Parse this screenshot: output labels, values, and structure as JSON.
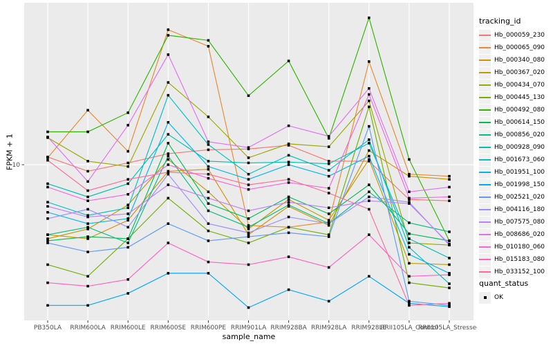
{
  "style": {
    "panel_background": "#EBEBEB",
    "grid_color": "#FFFFFF",
    "tick_color": "#333333",
    "tick_label_color": "#4D4D4D",
    "marker_color": "#000000"
  },
  "legend": {
    "tracking_title": "tracking_id",
    "quant_title": "quant_status",
    "quant_items": [
      {
        "label": "OK",
        "marker": "black-square"
      }
    ]
  },
  "chart_data": {
    "type": "line",
    "title": "",
    "xlabel": "sample_name",
    "ylabel": "FPKM + 1",
    "y_scale": "log10",
    "ylim": [
      1.8,
      60
    ],
    "y_tick_labels": [
      "10"
    ],
    "y_tick_values": [
      10
    ],
    "grid": "major",
    "legend_position": "right",
    "marker": "black-square",
    "categories": [
      "PB350LA",
      "RRIM600LA",
      "RRIM600LE",
      "RRIM600SE",
      "RRIM600PE",
      "RRIM901LA",
      "RRIM928BA",
      "RRIM928LA",
      "RRIM928LE",
      "RRII105LA_Control",
      "RRII105LA_Stressed"
    ],
    "series": [
      {
        "name": "Hb_000059_230",
        "color": "#F8766D",
        "values": [
          10.9,
          9.3,
          10.2,
          11.3,
          11.8,
          11.9,
          12.4,
          10.4,
          10.4,
          6.8,
          6.7
        ]
      },
      {
        "name": "Hb_000065_090",
        "color": "#E98A2C",
        "values": [
          10.8,
          18.3,
          11.6,
          44.7,
          37.2,
          5.1,
          5.0,
          5.3,
          31.4,
          9.0,
          8.8
        ]
      },
      {
        "name": "Hb_000340_080",
        "color": "#D39200",
        "values": [
          4.6,
          4.4,
          5.4,
          9.3,
          9.5,
          4.6,
          6.3,
          5.1,
          11.7,
          8.8,
          8.5
        ]
      },
      {
        "name": "Hb_000367_020",
        "color": "#BC9D00",
        "values": [
          4.4,
          4.9,
          6.4,
          10.6,
          7.4,
          4.9,
          6.8,
          5.4,
          10.6,
          3.35,
          3.3
        ]
      },
      {
        "name": "Hb_000434_070",
        "color": "#9CA700",
        "values": [
          13.5,
          10.4,
          9.8,
          24.9,
          17.0,
          10.8,
          12.6,
          12.2,
          20.3,
          4.2,
          4.1
        ]
      },
      {
        "name": "Hb_000445_130",
        "color": "#6FB000",
        "values": [
          3.3,
          2.9,
          4.4,
          6.9,
          4.8,
          4.2,
          5.0,
          4.6,
          19.0,
          2.7,
          2.55
        ]
      },
      {
        "name": "Hb_000492_080",
        "color": "#2FB600",
        "values": [
          14.4,
          14.4,
          17.8,
          42.0,
          39.7,
          21.5,
          31.6,
          13.4,
          51.0,
          10.6,
          4.3
        ]
      },
      {
        "name": "Hb_000614_150",
        "color": "#00BB57",
        "values": [
          4.3,
          4.5,
          4.4,
          12.7,
          6.5,
          5.5,
          7.0,
          5.8,
          8.0,
          4.65,
          4.3
        ]
      },
      {
        "name": "Hb_000856_020",
        "color": "#00BF85",
        "values": [
          4.6,
          5.0,
          4.2,
          11.0,
          6.0,
          5.0,
          6.4,
          5.2,
          7.4,
          5.25,
          4.75
        ]
      },
      {
        "name": "Hb_000928_090",
        "color": "#00C0B2",
        "values": [
          8.1,
          7.0,
          8.1,
          14.0,
          10.4,
          10.2,
          10.3,
          10.1,
          12.7,
          4.4,
          3.55
        ]
      },
      {
        "name": "Hb_001673_060",
        "color": "#00BFC4",
        "values": [
          6.6,
          5.7,
          6.2,
          21.6,
          12.5,
          9.0,
          11.1,
          9.4,
          13.2,
          4.0,
          2.67
        ]
      },
      {
        "name": "Hb_001951_100",
        "color": "#00B4F0",
        "values": [
          5.9,
          5.2,
          5.5,
          16.0,
          9.8,
          8.5,
          10.0,
          8.8,
          11.0,
          3.7,
          3.0
        ]
      },
      {
        "name": "Hb_001998_150",
        "color": "#00A6FF",
        "values": [
          2.1,
          2.1,
          2.4,
          3.0,
          3.0,
          2.05,
          2.5,
          2.2,
          2.9,
          2.15,
          2.07
        ]
      },
      {
        "name": "Hb_002521_020",
        "color": "#5C9BFF",
        "values": [
          4.2,
          3.8,
          4.0,
          5.2,
          4.3,
          4.5,
          4.7,
          4.5,
          15.3,
          2.2,
          2.1
        ]
      },
      {
        "name": "Hb_004116_180",
        "color": "#9590FF",
        "values": [
          5.5,
          6.1,
          5.0,
          9.0,
          5.2,
          4.7,
          5.6,
          5.2,
          7.0,
          6.6,
          4.1
        ]
      },
      {
        "name": "Hb_007575_080",
        "color": "#C27CFF",
        "values": [
          6.3,
          5.6,
          5.8,
          8.0,
          6.9,
          6.0,
          6.6,
          6.2,
          6.7,
          6.5,
          4.15
        ]
      },
      {
        "name": "Hb_008686_020",
        "color": "#E36EF6",
        "values": [
          13.6,
          8.3,
          15.5,
          33.9,
          12.9,
          12.1,
          15.4,
          13.7,
          23.3,
          7.4,
          7.8
        ]
      },
      {
        "name": "Hb_010180_060",
        "color": "#F763E0",
        "values": [
          7.8,
          6.7,
          7.2,
          10.0,
          8.6,
          7.6,
          8.2,
          7.7,
          21.8,
          6.9,
          7.0
        ]
      },
      {
        "name": "Hb_015183_080",
        "color": "#FF61C3",
        "values": [
          2.7,
          2.6,
          2.8,
          4.2,
          3.4,
          3.3,
          3.6,
          3.2,
          4.6,
          2.9,
          2.95
        ]
      },
      {
        "name": "Hb_033152_100",
        "color": "#FF6A9A",
        "values": [
          10.5,
          7.5,
          8.5,
          9.2,
          9.0,
          8.0,
          8.5,
          7.3,
          6.1,
          2.1,
          2.15
        ]
      }
    ]
  }
}
